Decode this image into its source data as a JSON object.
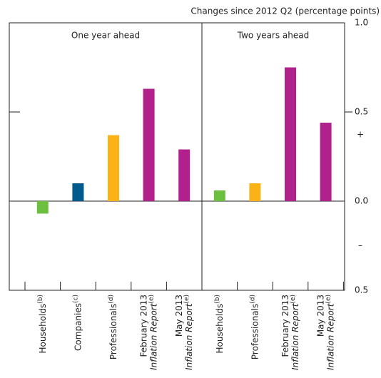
{
  "chart_data": {
    "type": "bar",
    "title": "Changes since 2012 Q2 (percentage points)",
    "ylim": [
      -0.5,
      1.0
    ],
    "yticks": [
      {
        "value": 1.0,
        "label": "1.0"
      },
      {
        "value": 0.5,
        "label": "0.5"
      },
      {
        "value": 0,
        "label": "0.0"
      },
      {
        "value": -0.5,
        "label": "0.5"
      }
    ],
    "sign_labels": {
      "positive": "+",
      "negative": "–"
    },
    "panels": [
      {
        "title": "One year ahead",
        "categories": [
          {
            "text": "Households",
            "note": "(b)"
          },
          {
            "text": "Companies",
            "note": "(c)"
          },
          {
            "text": "Professionals",
            "note": "(d)"
          },
          {
            "text": "February 2013",
            "italic": "Inflation Report",
            "note": "(e)"
          },
          {
            "text": "May 2013",
            "italic": "Inflation Report",
            "note": "(e)"
          }
        ],
        "values": [
          -0.07,
          0.1,
          0.37,
          0.63,
          0.29
        ],
        "colors": [
          "#6cbf3f",
          "#005a8c",
          "#fbb217",
          "#b0218b",
          "#b0218b"
        ]
      },
      {
        "title": "Two years ahead",
        "categories": [
          {
            "text": "Households",
            "note": "(b)"
          },
          {
            "text": "Professionals",
            "note": "(d)"
          },
          {
            "text": "February 2013",
            "italic": "Inflation Report",
            "note": "(e)"
          },
          {
            "text": "May 2013",
            "italic": "Inflation Report",
            "note": "(e)"
          }
        ],
        "values": [
          0.06,
          0.1,
          0.75,
          0.44
        ],
        "colors": [
          "#6cbf3f",
          "#fbb217",
          "#b0218b",
          "#b0218b"
        ]
      }
    ]
  }
}
